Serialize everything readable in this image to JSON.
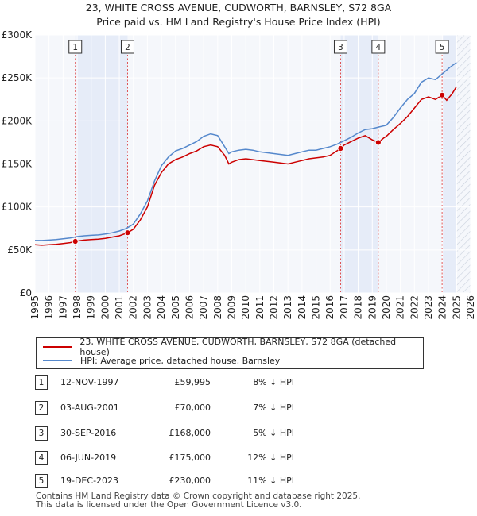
{
  "chart_data": {
    "type": "line",
    "title": "23, WHITE CROSS AVENUE, CUDWORTH, BARNSLEY, S72 8GA",
    "subtitle": "Price paid vs. HM Land Registry's House Price Index (HPI)",
    "x_range": [
      1995,
      2026
    ],
    "y_range": [
      0,
      300000
    ],
    "x_ticks": [
      "1995",
      "1996",
      "1997",
      "1998",
      "1999",
      "2000",
      "2001",
      "2002",
      "2003",
      "2004",
      "2005",
      "2006",
      "2007",
      "2008",
      "2009",
      "2010",
      "2011",
      "2012",
      "2013",
      "2014",
      "2015",
      "2016",
      "2017",
      "2018",
      "2019",
      "2020",
      "2021",
      "2022",
      "2023",
      "2024",
      "2025",
      "2026"
    ],
    "y_ticks": [
      {
        "value": 0,
        "label": "£0"
      },
      {
        "value": 50000,
        "label": "£50K"
      },
      {
        "value": 100000,
        "label": "£100K"
      },
      {
        "value": 150000,
        "label": "£150K"
      },
      {
        "value": 200000,
        "label": "£200K"
      },
      {
        "value": 250000,
        "label": "£250K"
      },
      {
        "value": 300000,
        "label": "£300K"
      }
    ],
    "grid": true,
    "future_start": 2025.0,
    "series": [
      {
        "name": "23, WHITE CROSS AVENUE, CUDWORTH, BARNSLEY, S72 8GA (detached house)",
        "color": "#cc0000",
        "x": [
          1995.0,
          1995.5,
          1996.0,
          1996.5,
          1997.0,
          1997.5,
          1997.87,
          1998.5,
          1999.0,
          1999.5,
          2000.0,
          2000.5,
          2001.0,
          2001.59,
          2002.0,
          2002.5,
          2003.0,
          2003.5,
          2004.0,
          2004.5,
          2005.0,
          2005.5,
          2006.0,
          2006.5,
          2007.0,
          2007.5,
          2008.0,
          2008.5,
          2008.8,
          2009.0,
          2009.5,
          2010.0,
          2010.5,
          2011.0,
          2011.5,
          2012.0,
          2012.5,
          2013.0,
          2013.5,
          2014.0,
          2014.5,
          2015.0,
          2015.5,
          2016.0,
          2016.75,
          2017.0,
          2017.5,
          2018.0,
          2018.5,
          2019.0,
          2019.43,
          2019.8,
          2020.0,
          2020.5,
          2021.0,
          2021.5,
          2022.0,
          2022.5,
          2023.0,
          2023.5,
          2023.97,
          2024.3,
          2024.7,
          2025.0
        ],
        "values": [
          56000,
          55500,
          56000,
          56500,
          57500,
          58500,
          59995,
          61500,
          62000,
          62500,
          63500,
          65000,
          66500,
          70000,
          74000,
          85000,
          100000,
          125000,
          140000,
          150000,
          155000,
          158000,
          162000,
          165000,
          170000,
          172000,
          170000,
          160000,
          150000,
          152000,
          155000,
          156000,
          155000,
          154000,
          153000,
          152000,
          151000,
          150000,
          152000,
          154000,
          156000,
          157000,
          158000,
          160000,
          168000,
          172000,
          176000,
          180000,
          183000,
          178000,
          175000,
          180000,
          182000,
          190000,
          197000,
          205000,
          215000,
          225000,
          228000,
          225000,
          230000,
          224000,
          232000,
          240000
        ],
        "markers": [
          {
            "label": "1",
            "x": 1997.87,
            "value": 59995
          },
          {
            "label": "2",
            "x": 2001.59,
            "value": 70000
          },
          {
            "label": "3",
            "x": 2016.75,
            "value": 168000
          },
          {
            "label": "4",
            "x": 2019.43,
            "value": 175000
          },
          {
            "label": "5",
            "x": 2023.97,
            "value": 230000
          }
        ]
      },
      {
        "name": "HPI: Average price, detached house, Barnsley",
        "color": "#5588cc",
        "x": [
          1995.0,
          1995.5,
          1996.0,
          1996.5,
          1997.0,
          1997.5,
          1998.0,
          1998.5,
          1999.0,
          1999.5,
          2000.0,
          2000.5,
          2001.0,
          2001.5,
          2002.0,
          2002.5,
          2003.0,
          2003.5,
          2004.0,
          2004.5,
          2005.0,
          2005.5,
          2006.0,
          2006.5,
          2007.0,
          2007.5,
          2008.0,
          2008.5,
          2008.8,
          2009.0,
          2009.5,
          2010.0,
          2010.5,
          2011.0,
          2011.5,
          2012.0,
          2012.5,
          2013.0,
          2013.5,
          2014.0,
          2014.5,
          2015.0,
          2015.5,
          2016.0,
          2016.5,
          2017.0,
          2017.5,
          2018.0,
          2018.5,
          2019.0,
          2019.5,
          2020.0,
          2020.5,
          2021.0,
          2021.5,
          2022.0,
          2022.5,
          2023.0,
          2023.5,
          2024.0,
          2024.5,
          2025.0
        ],
        "values": [
          61000,
          61000,
          61500,
          62000,
          63000,
          64000,
          65500,
          66500,
          67000,
          67500,
          68500,
          70000,
          72000,
          75000,
          80000,
          92000,
          107000,
          130000,
          148000,
          158000,
          165000,
          168000,
          172000,
          176000,
          182000,
          185000,
          183000,
          170000,
          162000,
          164000,
          166000,
          167000,
          166000,
          164000,
          163000,
          162000,
          161000,
          160000,
          162000,
          164000,
          166000,
          166000,
          168000,
          170000,
          173000,
          177000,
          181000,
          186000,
          190000,
          191000,
          193000,
          195000,
          204000,
          215000,
          225000,
          232000,
          245000,
          250000,
          248000,
          255000,
          262000,
          268000
        ]
      }
    ]
  },
  "legend": {
    "hpi_label": "HPI: Average price, detached house, Barnsley",
    "property_label": "23, WHITE CROSS AVENUE, CUDWORTH, BARNSLEY, S72 8GA (detached house)"
  },
  "transactions": [
    {
      "num": "1",
      "date": "12-NOV-1997",
      "price": "£59,995",
      "hpi_diff": "8% ↓ HPI"
    },
    {
      "num": "2",
      "date": "03-AUG-2001",
      "price": "£70,000",
      "hpi_diff": "7% ↓ HPI"
    },
    {
      "num": "3",
      "date": "30-SEP-2016",
      "price": "£168,000",
      "hpi_diff": "5% ↓ HPI"
    },
    {
      "num": "4",
      "date": "06-JUN-2019",
      "price": "£175,000",
      "hpi_diff": "12% ↓ HPI"
    },
    {
      "num": "5",
      "date": "19-DEC-2023",
      "price": "£230,000",
      "hpi_diff": "11% ↓ HPI"
    }
  ],
  "footer": {
    "line1": "Contains HM Land Registry data © Crown copyright and database right 2025.",
    "line2": "This data is licensed under the Open Government Licence v3.0."
  }
}
